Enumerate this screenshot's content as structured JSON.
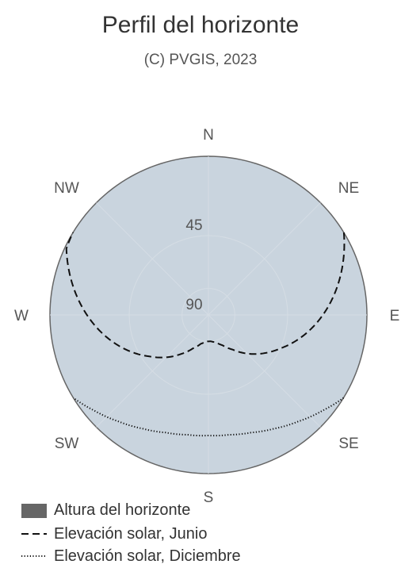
{
  "chart_data": {
    "type": "polar-line",
    "title": "Perfil del horizonte",
    "subtitle": "(C) PVGIS, 2023",
    "radial_axis": {
      "range": [
        90,
        0
      ],
      "tick_labels": [
        "45",
        "90"
      ]
    },
    "angular_axis": {
      "direction_labels": [
        "N",
        "NE",
        "E",
        "SE",
        "S",
        "SW",
        "W",
        "NW"
      ]
    },
    "grid": true,
    "colors": {
      "horizon_fill": "#c9d4de",
      "horizon_line": "#666666",
      "grid": "#d5dde4",
      "legend_box": "#666666",
      "sun_path": "#111111"
    },
    "series": [
      {
        "name": "Altura del horizonte",
        "style": "filled",
        "azimuth": [
          0,
          45,
          90,
          135,
          180,
          225,
          270,
          315,
          360
        ],
        "elevation": [
          0,
          0,
          0,
          0,
          0,
          0,
          0,
          0,
          0
        ]
      },
      {
        "name": "Elevación solar, Junio",
        "style": "dashed",
        "azimuth": [
          58.7,
          65,
          75,
          85,
          95,
          105,
          115,
          125,
          135,
          145,
          155,
          165,
          175,
          185,
          195,
          205,
          215,
          225,
          235,
          245,
          255,
          265,
          275,
          285,
          295,
          301.3
        ],
        "elevation": [
          0,
          5,
          13,
          21,
          29,
          37,
          45,
          52,
          59,
          66,
          71,
          74,
          75,
          75,
          73,
          69,
          63,
          56,
          49,
          41,
          33,
          25,
          17,
          9,
          1,
          0
        ]
      },
      {
        "name": "Elevación solar, Diciembre",
        "style": "dotted",
        "azimuth": [
          121.5,
          130,
          140,
          150,
          160,
          170,
          180,
          190,
          200,
          210,
          220,
          230,
          238.5
        ],
        "elevation": [
          0,
          5.5,
          11,
          15.5,
          19,
          21,
          21.6,
          21,
          19,
          15.5,
          11,
          5.5,
          0
        ]
      }
    ],
    "legend": {
      "placement": "bottom-left",
      "items": [
        "Altura del horizonte",
        "Elevación solar, Junio",
        "Elevación solar, Diciembre"
      ]
    }
  }
}
